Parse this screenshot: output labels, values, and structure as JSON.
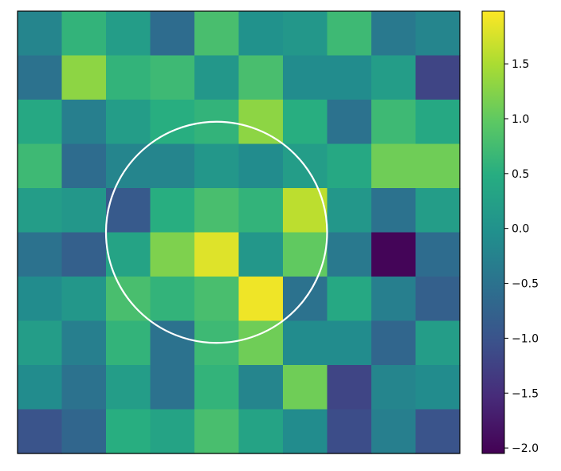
{
  "chart_data": {
    "type": "heatmap",
    "title": "",
    "xlabel": "",
    "ylabel": "",
    "rows": 10,
    "cols": 10,
    "values": [
      [
        -0.2,
        0.6,
        0.2,
        -0.6,
        0.8,
        0.0,
        0.1,
        0.7,
        -0.4,
        -0.2
      ],
      [
        -0.5,
        1.3,
        0.6,
        0.7,
        0.1,
        0.8,
        -0.1,
        -0.1,
        0.2,
        -1.2
      ],
      [
        0.4,
        -0.3,
        0.2,
        0.5,
        0.6,
        1.3,
        0.5,
        -0.5,
        0.7,
        0.4
      ],
      [
        0.7,
        -0.6,
        -0.2,
        -0.2,
        0.1,
        -0.1,
        0.2,
        0.4,
        1.1,
        1.1
      ],
      [
        0.2,
        0.1,
        -0.9,
        0.5,
        0.8,
        0.6,
        1.6,
        0.1,
        -0.5,
        0.2
      ],
      [
        -0.5,
        -0.8,
        0.3,
        1.2,
        1.8,
        0.1,
        1.0,
        -0.4,
        -2.0,
        -0.6
      ],
      [
        -0.1,
        0.1,
        0.8,
        0.6,
        0.8,
        1.9,
        -0.5,
        0.4,
        -0.3,
        -0.8
      ],
      [
        0.2,
        -0.3,
        0.6,
        -0.5,
        0.7,
        1.1,
        -0.1,
        -0.1,
        -0.7,
        0.2
      ],
      [
        -0.1,
        -0.5,
        0.2,
        -0.5,
        0.6,
        -0.2,
        1.1,
        -1.2,
        -0.2,
        -0.1
      ],
      [
        -1.0,
        -0.7,
        0.5,
        0.3,
        0.8,
        0.3,
        -0.1,
        -1.1,
        -0.3,
        -1.0
      ]
    ],
    "colormap": "viridis",
    "colorbar": {
      "range": [
        -2.05,
        1.98
      ],
      "ticks": [
        -2.0,
        -1.5,
        -1.0,
        -0.5,
        0.0,
        0.5,
        1.0,
        1.5
      ],
      "tick_labels": [
        "−2.0",
        "−1.5",
        "−1.0",
        "−0.5",
        "0.0",
        "0.5",
        "1.0",
        "1.5"
      ]
    },
    "annotations": [
      {
        "type": "circle",
        "color": "#ffffff",
        "center_col": 4.0,
        "center_row": 5.0,
        "radius_cells": 2.5
      }
    ],
    "grid": false,
    "axes_ticks": false
  }
}
